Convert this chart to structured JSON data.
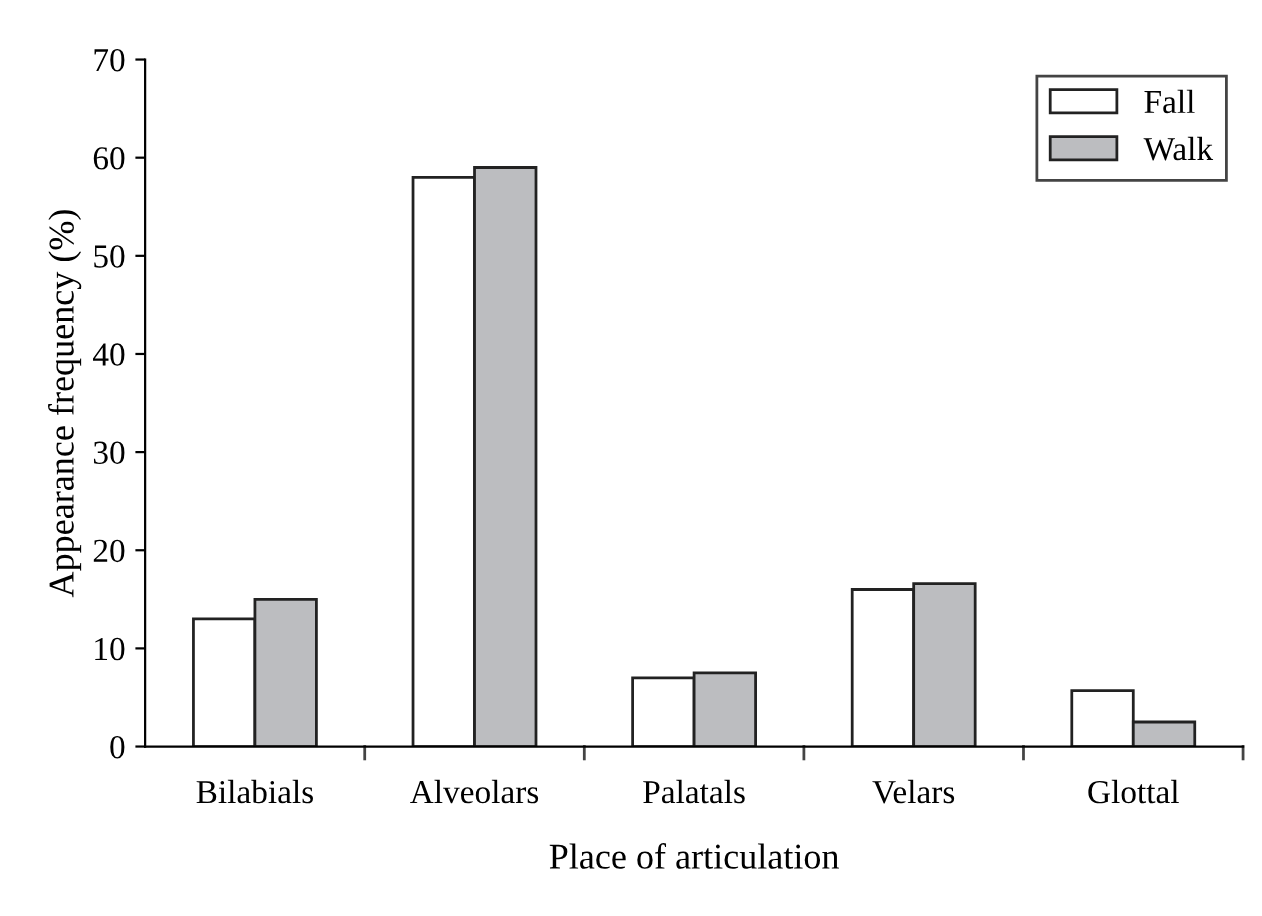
{
  "chart_data": {
    "type": "bar",
    "xlabel": "Place of articulation",
    "ylabel": "Appearance frequency (%)",
    "categories": [
      "Bilabials",
      "Alveolars",
      "Palatals",
      "Velars",
      "Glottal"
    ],
    "series": [
      {
        "name": "Fall",
        "color": "#ffffff",
        "values": [
          13,
          58,
          7,
          16,
          5.7
        ]
      },
      {
        "name": "Walk",
        "color": "#bcbdc0",
        "values": [
          15,
          59,
          7.5,
          16.6,
          2.5
        ]
      }
    ],
    "ylim": [
      0,
      70
    ],
    "yticks": [
      0,
      10,
      20,
      30,
      40,
      50,
      60,
      70
    ],
    "grid": false,
    "legend": "top right"
  }
}
